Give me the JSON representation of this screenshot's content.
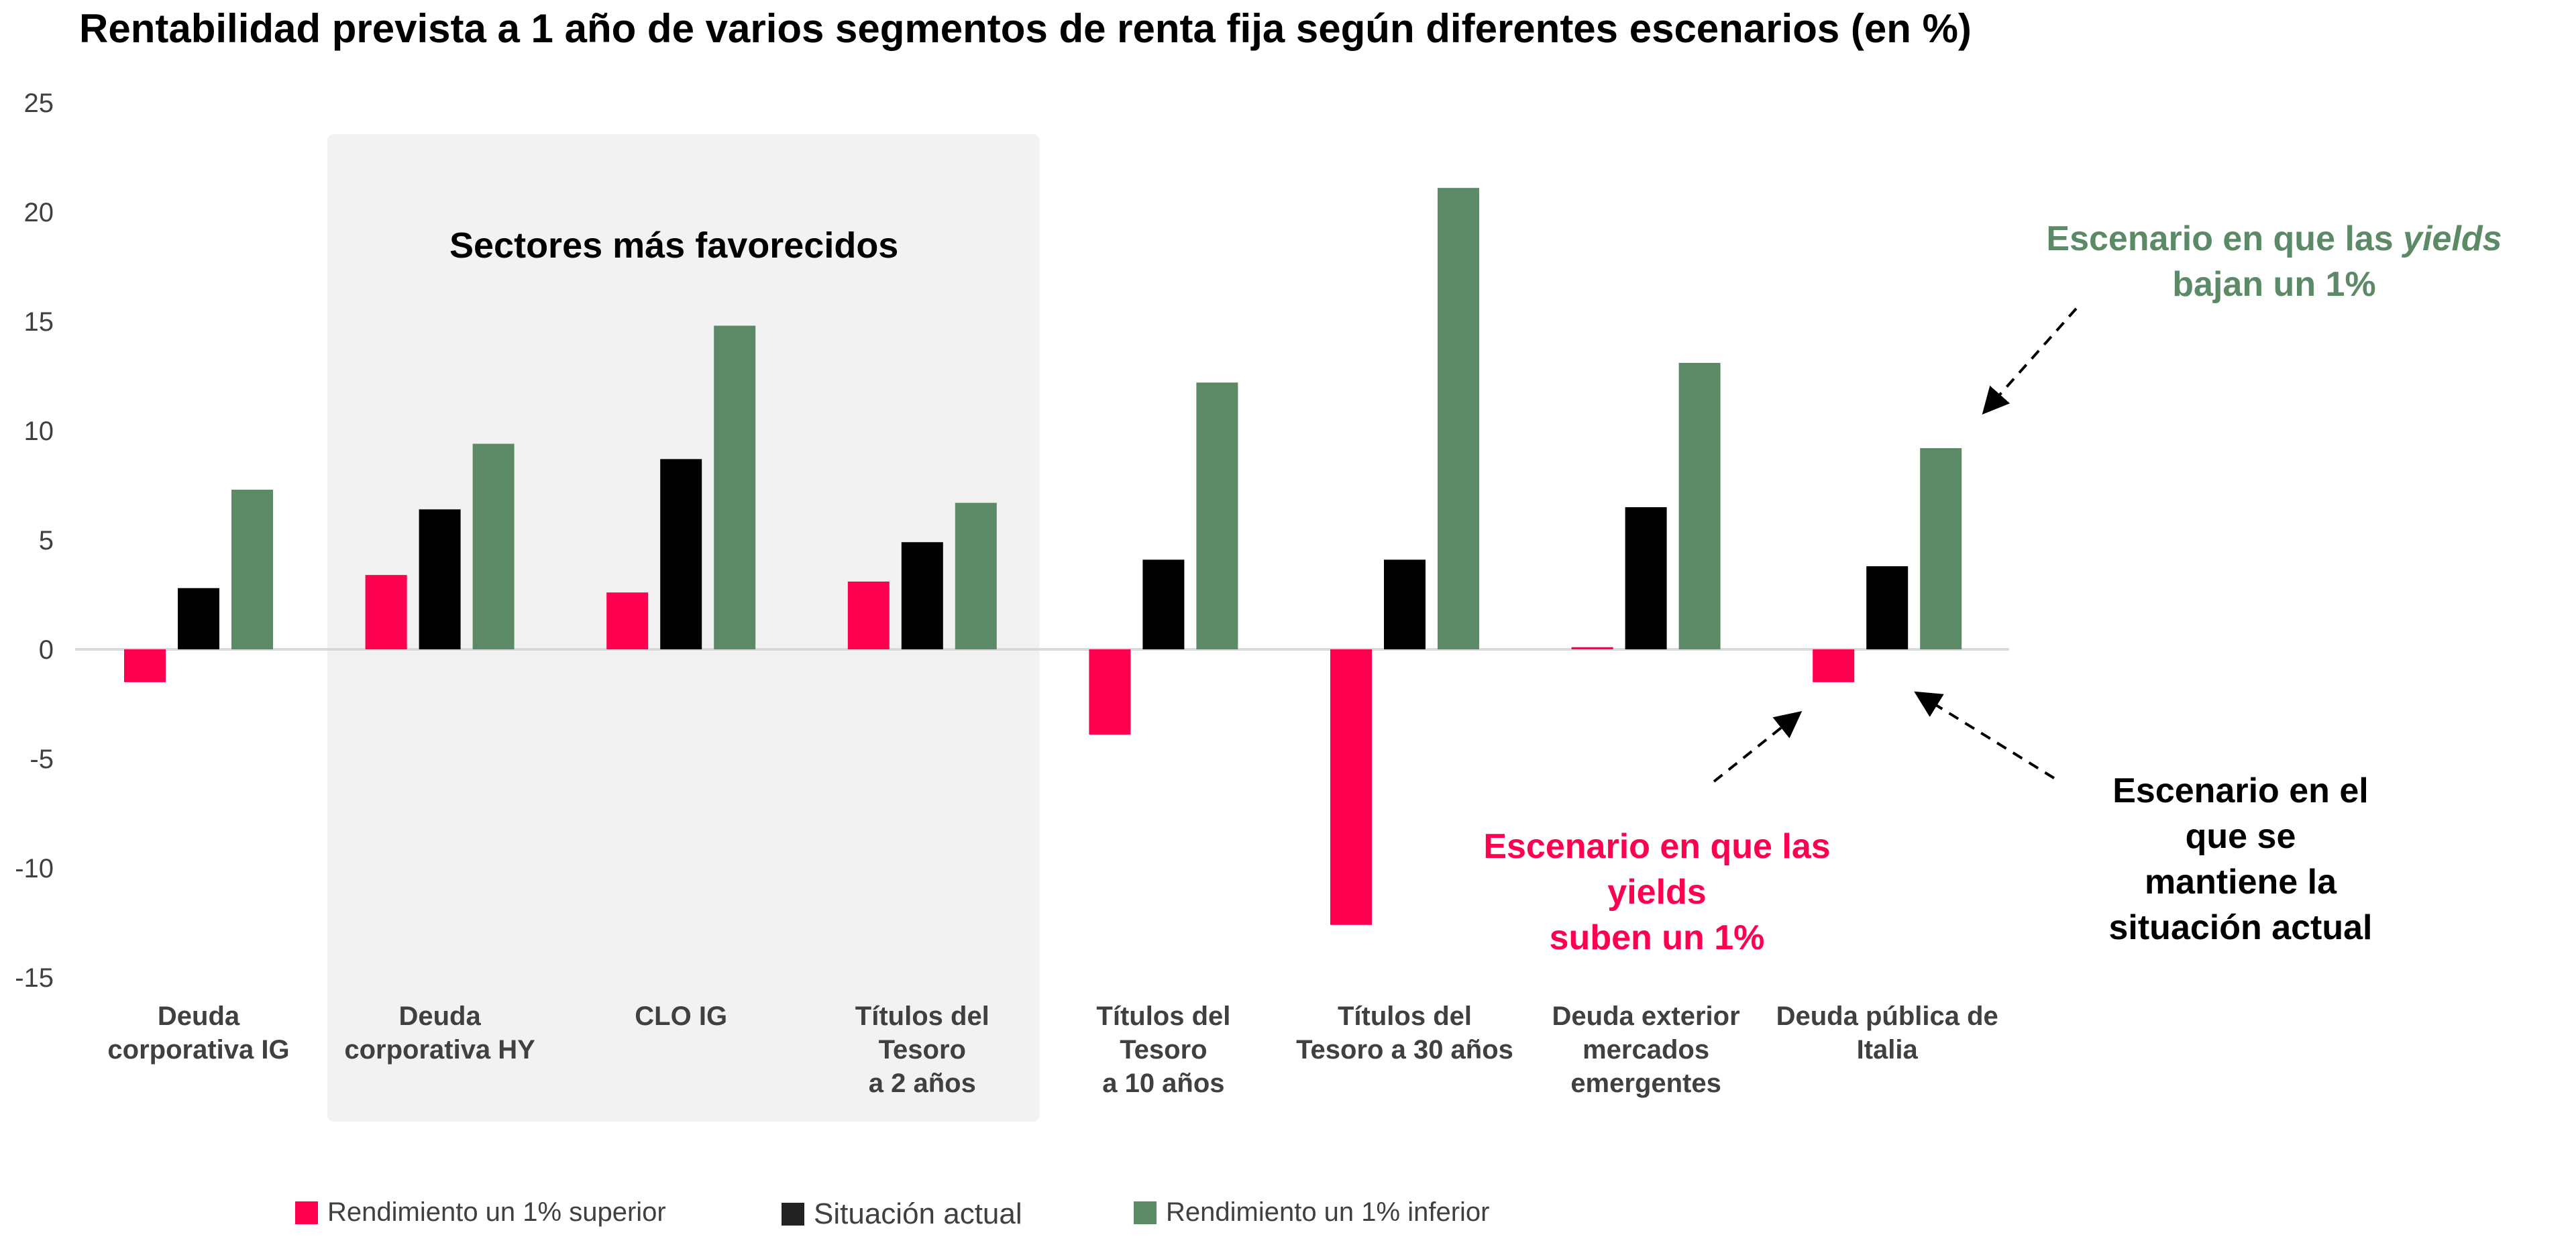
{
  "chart_data": {
    "type": "bar",
    "title": "Rentabilidad prevista a 1 año de varios segmentos de renta fija según diferentes escenarios (en %)",
    "xlabel": "",
    "ylabel": "",
    "ylim": [
      -15,
      25
    ],
    "yticks": [
      25,
      20,
      15,
      10,
      5,
      0,
      -5,
      -10,
      -15
    ],
    "grid": false,
    "legend_position": "bottom",
    "categories": [
      "Deuda\ncorporativa IG",
      "Deuda\ncorporativa HY",
      "CLO IG",
      "Títulos del\nTesoro\na 2 años",
      "Títulos del\nTesoro\na 10 años",
      "Títulos del\nTesoro a 30 años",
      "Deuda exterior\nmercados\nemergentes",
      "Deuda pública de\nItalia"
    ],
    "series": [
      {
        "name": "Rendimiento un 1% superior",
        "color": "#ff0050",
        "values": [
          -1.5,
          3.4,
          2.6,
          3.1,
          -3.9,
          -12.6,
          0.1,
          -1.5
        ]
      },
      {
        "name": "Situación actual",
        "color": "#000000",
        "values": [
          2.8,
          6.4,
          8.7,
          4.9,
          4.1,
          4.1,
          6.5,
          3.8
        ]
      },
      {
        "name": "Rendimiento un 1% inferior",
        "color": "#5c8a67",
        "values": [
          7.3,
          9.4,
          14.8,
          6.7,
          12.2,
          21.1,
          13.1,
          9.2
        ]
      }
    ],
    "highlight": {
      "label": "Sectores más favorecidos",
      "categories": [
        "Deuda\ncorporativa HY",
        "CLO IG",
        "Títulos del\nTesoro\na 2 años"
      ],
      "color": "#f2f2f2"
    },
    "annotations": [
      {
        "id": "down",
        "text_before": "Escenario en que las ",
        "text_italic": "yields",
        "line2": "bajan un 1%",
        "color": "#5c8a67"
      },
      {
        "id": "up",
        "lines": [
          "Escenario en que las",
          "yields",
          "suben un 1%"
        ],
        "color": "#ff0050"
      },
      {
        "id": "current",
        "lines": [
          "Escenario en el",
          "que se",
          "mantiene la",
          "situación actual"
        ],
        "color": "#000000"
      }
    ]
  }
}
